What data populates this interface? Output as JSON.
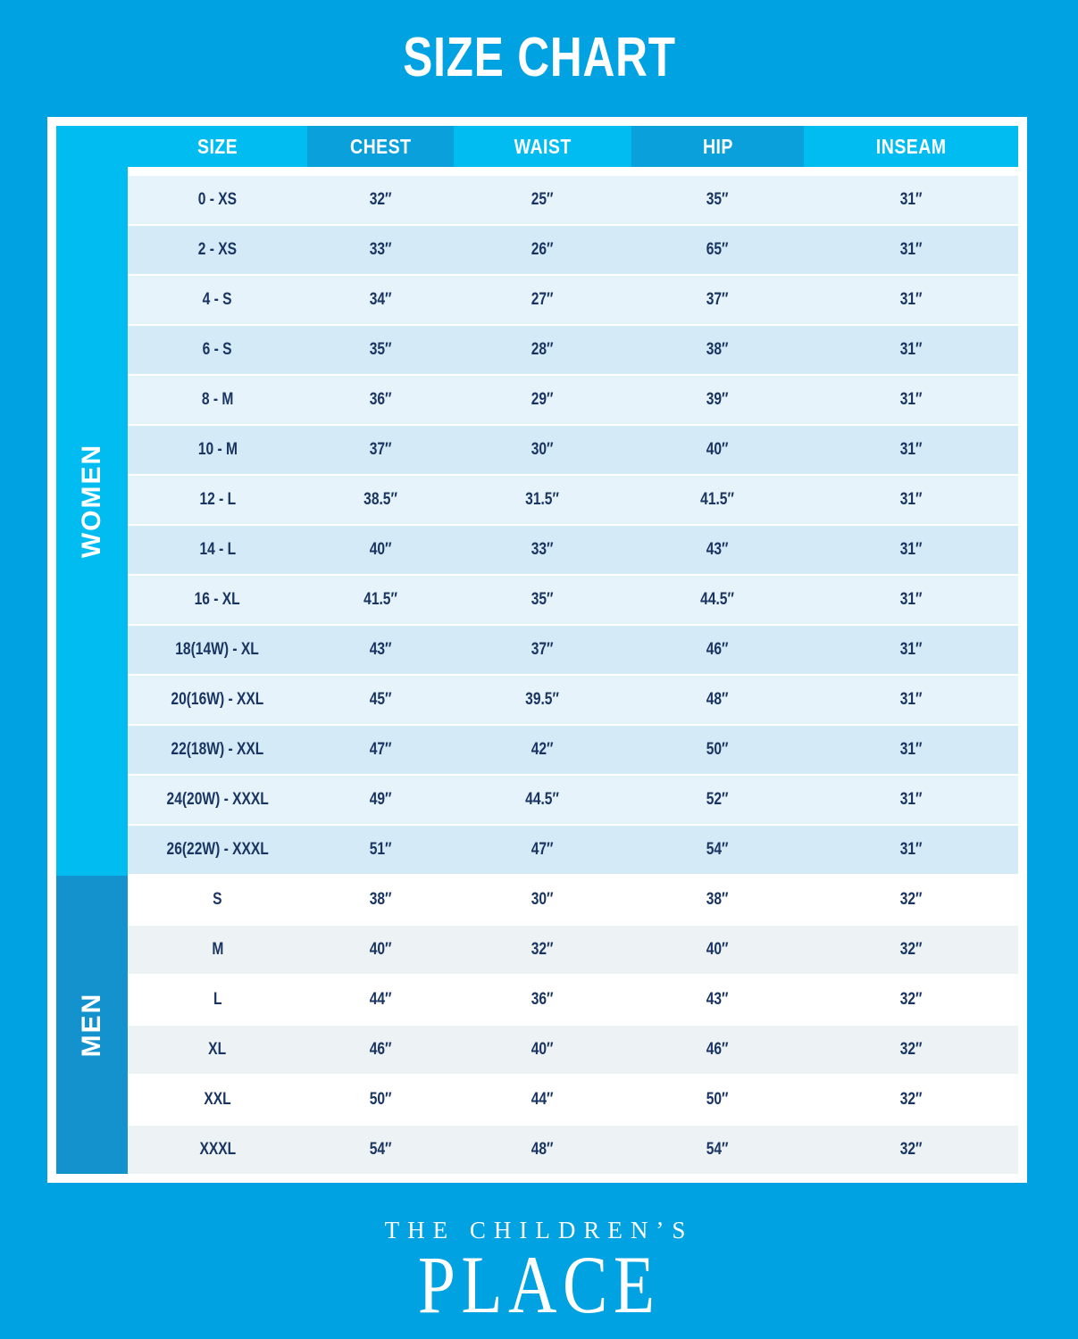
{
  "title": "SIZE CHART",
  "table": {
    "headers": [
      "SIZE",
      "CHEST",
      "WAIST",
      "HIP",
      "INSEAM"
    ],
    "sections": [
      {
        "label": "WOMEN",
        "rows": [
          [
            "0 - XS",
            "32″",
            "25″",
            "35″",
            "31″"
          ],
          [
            "2 - XS",
            "33″",
            "26″",
            "65″",
            "31″"
          ],
          [
            "4 - S",
            "34″",
            "27″",
            "37″",
            "31″"
          ],
          [
            "6 - S",
            "35″",
            "28″",
            "38″",
            "31″"
          ],
          [
            "8 - M",
            "36″",
            "29″",
            "39″",
            "31″"
          ],
          [
            "10 - M",
            "37″",
            "30″",
            "40″",
            "31″"
          ],
          [
            "12 - L",
            "38.5″",
            "31.5″",
            "41.5″",
            "31″"
          ],
          [
            "14 - L",
            "40″",
            "33″",
            "43″",
            "31″"
          ],
          [
            "16 - XL",
            "41.5″",
            "35″",
            "44.5″",
            "31″"
          ],
          [
            "18(14W) - XL",
            "43″",
            "37″",
            "46″",
            "31″"
          ],
          [
            "20(16W) - XXL",
            "45″",
            "39.5″",
            "48″",
            "31″"
          ],
          [
            "22(18W) - XXL",
            "47″",
            "42″",
            "50″",
            "31″"
          ],
          [
            "24(20W) - XXXL",
            "49″",
            "44.5″",
            "52″",
            "31″"
          ],
          [
            "26(22W) - XXXL",
            "51″",
            "47″",
            "54″",
            "31″"
          ]
        ]
      },
      {
        "label": "MEN",
        "rows": [
          [
            "S",
            "38″",
            "30″",
            "38″",
            "32″"
          ],
          [
            "M",
            "40″",
            "32″",
            "40″",
            "32″"
          ],
          [
            "L",
            "44″",
            "36″",
            "43″",
            "32″"
          ],
          [
            "XL",
            "46″",
            "40″",
            "46″",
            "32″"
          ],
          [
            "XXL",
            "50″",
            "44″",
            "50″",
            "32″"
          ],
          [
            "XXXL",
            "54″",
            "48″",
            "54″",
            "32″"
          ]
        ]
      }
    ]
  },
  "footer": {
    "brand_line1": "THE CHILDREN’S",
    "brand_line2": "PLACE"
  },
  "colors": {
    "page_background": "#00A2E2",
    "cyan_accent": "#00BCF0",
    "header_band_dark": "#0AA0DB",
    "men_strip": "#1492CE",
    "women_row_light": "#E6F3FA",
    "women_row_shaded": "#D4EAF6",
    "men_row_white": "#FFFFFF",
    "men_row_shaded": "#EDF2F5",
    "cell_text": "#1B3563",
    "frame_white": "#FFFFFF"
  }
}
